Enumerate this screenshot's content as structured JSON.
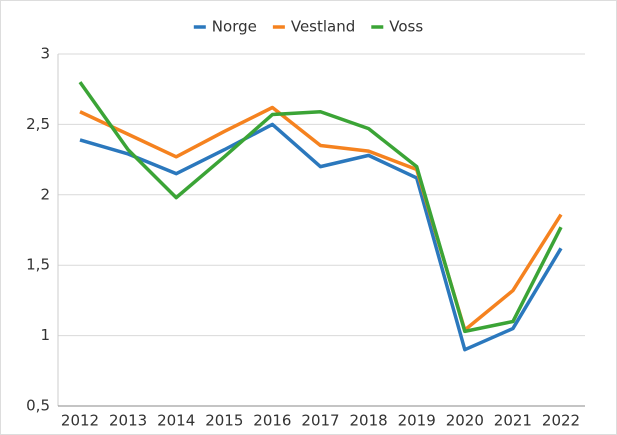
{
  "chart_data": {
    "type": "line",
    "categories": [
      "2012",
      "2013",
      "2014",
      "2015",
      "2016",
      "2017",
      "2018",
      "2019",
      "2020",
      "2021",
      "2022"
    ],
    "series": [
      {
        "name": "Norge",
        "color": "#2b78bd",
        "values": [
          2.39,
          2.29,
          2.15,
          2.32,
          2.5,
          2.2,
          2.28,
          2.12,
          0.9,
          1.05,
          1.62
        ]
      },
      {
        "name": "Vestland",
        "color": "#f5821f",
        "values": [
          2.59,
          2.43,
          2.27,
          2.45,
          2.62,
          2.35,
          2.31,
          2.18,
          1.04,
          1.32,
          1.86
        ]
      },
      {
        "name": "Voss",
        "color": "#3ba436",
        "values": [
          2.8,
          2.32,
          1.98,
          2.27,
          2.57,
          2.59,
          2.47,
          2.2,
          1.03,
          1.1,
          1.77
        ]
      }
    ],
    "ylim": [
      0.5,
      3
    ],
    "yticks": [
      {
        "value": 0.5,
        "label": "0,5"
      },
      1,
      {
        "value": 1.5,
        "label": "1,5"
      },
      2,
      {
        "value": 2.5,
        "label": "2,5"
      },
      3
    ],
    "grid": true,
    "legend": "top"
  }
}
